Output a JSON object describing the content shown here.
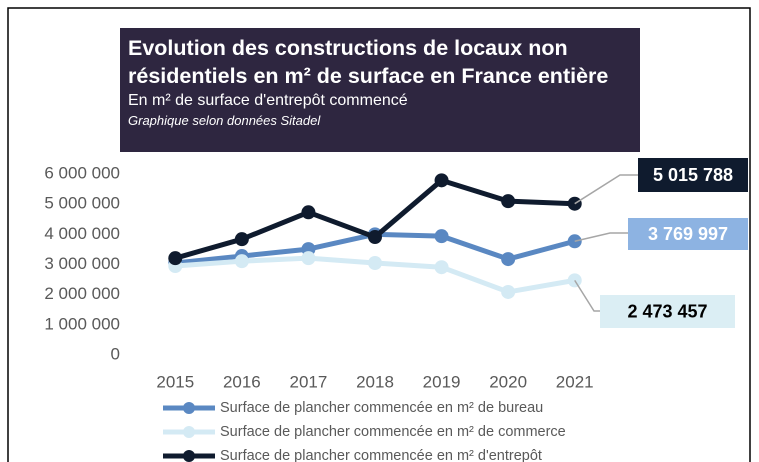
{
  "chart_data": {
    "type": "line",
    "title": "Evolution des constructions de locaux non résidentiels en m² de surface en France entière",
    "subtitle": "En m² de surface d'entrepôt commencé",
    "note": "Graphique selon données Sitadel",
    "categories": [
      "2015",
      "2016",
      "2017",
      "2018",
      "2019",
      "2020",
      "2021"
    ],
    "ylim": [
      0,
      6000000
    ],
    "yticks": [
      {
        "value": 0,
        "label": "0"
      },
      {
        "value": 1000000,
        "label": "1 000 000"
      },
      {
        "value": 2000000,
        "label": "2 000 000"
      },
      {
        "value": 3000000,
        "label": "3 000 000"
      },
      {
        "value": 4000000,
        "label": "4 000 000"
      },
      {
        "value": 5000000,
        "label": "5 000 000"
      },
      {
        "value": 6000000,
        "label": "6 000 000"
      }
    ],
    "grid": false,
    "legend": "bottom",
    "series": [
      {
        "name": "Surface de plancher commencée en m² de bureau",
        "color": "#5a88c2",
        "values": [
          3050000,
          3280000,
          3510000,
          4000000,
          3940000,
          3180000,
          3769997
        ],
        "value_labels": [
          null,
          null,
          null,
          null,
          null,
          null,
          "3 769 997"
        ]
      },
      {
        "name": "Surface de plancher commencée en m² de commerce",
        "color": "#d4eaf4",
        "values": [
          2950000,
          3110000,
          3210000,
          3050000,
          2910000,
          2090000,
          2473457
        ],
        "value_labels": [
          null,
          null,
          null,
          null,
          null,
          null,
          "2 473 457"
        ]
      },
      {
        "name": "Surface de plancher commencée en m² d'entrepôt",
        "color": "#0f1b2e",
        "values": [
          3210000,
          3840000,
          4730000,
          3910000,
          5790000,
          5100000,
          5015788
        ],
        "value_labels": [
          null,
          null,
          null,
          null,
          null,
          null,
          "5 015 788"
        ]
      }
    ]
  }
}
